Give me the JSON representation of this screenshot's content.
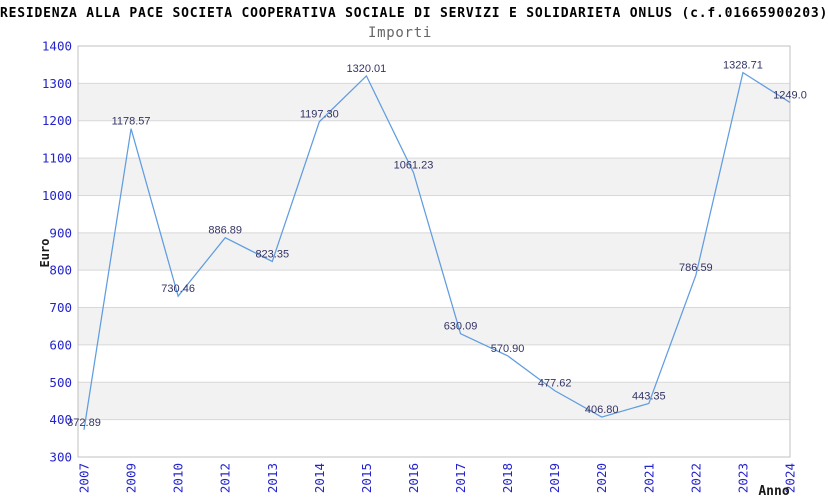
{
  "header": {
    "title": "RESIDENZA ALLA PACE SOCIETA COOPERATIVA SOCIALE DI SERVIZI E SOLIDARIETA ONLUS (c.f.01665900203)",
    "subtitle": "Importi"
  },
  "chart_data": {
    "type": "line",
    "title": "Importi",
    "xlabel": "Anno",
    "ylabel": "Euro",
    "categories": [
      "2007",
      "2009",
      "2010",
      "2012",
      "2013",
      "2014",
      "2015",
      "2016",
      "2017",
      "2018",
      "2019",
      "2020",
      "2021",
      "2022",
      "2023",
      "2024"
    ],
    "values": [
      372.89,
      1178.57,
      730.46,
      886.89,
      823.35,
      1197.3,
      1320.01,
      1061.23,
      630.09,
      570.9,
      477.62,
      406.8,
      443.35,
      786.59,
      1328.71,
      1249.0
    ],
    "point_labels": [
      "372.89",
      "1178.57",
      "730.46",
      "886.89",
      "823.35",
      "1197.30",
      "1320.01",
      "1061.23",
      "630.09",
      "570.90",
      "477.62",
      "406.80",
      "443.35",
      "786.59",
      "1328.71",
      "1249.0"
    ],
    "ylim": [
      300,
      1400
    ],
    "y_ticks": [
      1400,
      1300,
      1200,
      1100,
      1000,
      900,
      800,
      700,
      600,
      500,
      400,
      300
    ],
    "grid": "horizontal",
    "alt_bands": true,
    "legend": "none",
    "colors": {
      "line": "#609de0",
      "tick_label": "#2424cc",
      "point_label": "#333366",
      "band": "#f2f2f2",
      "grid": "#d8d8d8",
      "border": "#c0c0c0",
      "axis_title": "#1a1a1a",
      "subtitle": "#666666",
      "title": "#000000",
      "background": "#ffffff"
    }
  }
}
